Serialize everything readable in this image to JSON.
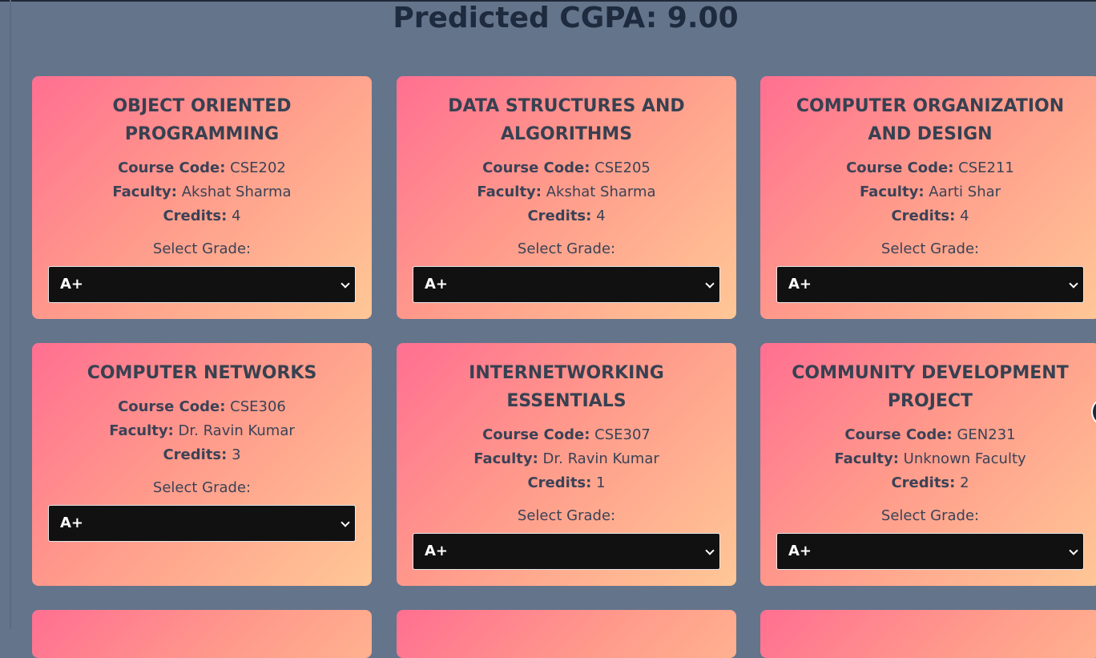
{
  "header": {
    "title": "Predicted CGPA: 9.00"
  },
  "labels": {
    "course_code": "Course Code:",
    "faculty": "Faculty:",
    "credits": "Credits:",
    "select_grade": "Select Grade:"
  },
  "courses": [
    {
      "name": "OBJECT ORIENTED PROGRAMMING",
      "code": "CSE202",
      "faculty": "Akshat Sharma",
      "credits": "4",
      "grade": "A+"
    },
    {
      "name": "DATA STRUCTURES AND ALGORITHMS",
      "code": "CSE205",
      "faculty": "Akshat Sharma",
      "credits": "4",
      "grade": "A+"
    },
    {
      "name": "COMPUTER ORGANIZATION AND DESIGN",
      "code": "CSE211",
      "faculty": "Aarti Shar",
      "credits": "4",
      "grade": "A+"
    },
    {
      "name": "COMPUTER NETWORKS",
      "code": "CSE306",
      "faculty": "Dr. Ravin Kumar",
      "credits": "3",
      "grade": "A+"
    },
    {
      "name": "INTERNETWORKING ESSENTIALS",
      "code": "CSE307",
      "faculty": "Dr. Ravin Kumar",
      "credits": "1",
      "grade": "A+"
    },
    {
      "name": "COMMUNITY DEVELOPMENT PROJECT",
      "code": "GEN231",
      "faculty": "Unknown Faculty",
      "credits": "2",
      "grade": "A+"
    }
  ]
}
